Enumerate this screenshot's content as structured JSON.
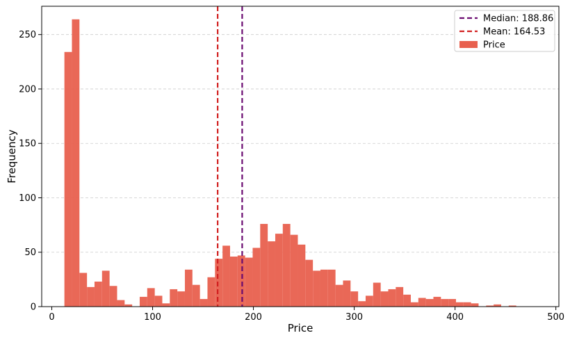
{
  "chart_data": {
    "type": "histogram",
    "title": "",
    "xlabel": "Price",
    "ylabel": "Frequency",
    "xlim": [
      -10,
      503
    ],
    "ylim": [
      0,
      276
    ],
    "xticks": [
      0,
      100,
      200,
      300,
      400,
      500
    ],
    "yticks": [
      0,
      50,
      100,
      150,
      200,
      250
    ],
    "grid": "horizontal, dashed",
    "legend_position": "top-right",
    "bar_color": "#e8604e",
    "bin_start": 12.5,
    "bin_width": 7.47,
    "series": [
      {
        "name": "Price",
        "values": [
          234,
          264,
          31,
          18,
          23,
          33,
          19,
          6,
          2,
          0,
          9,
          17,
          10,
          3,
          16,
          14,
          34,
          20,
          7,
          27,
          44,
          56,
          46,
          47,
          45,
          54,
          76,
          60,
          67,
          76,
          66,
          57,
          43,
          33,
          34,
          34,
          20,
          24,
          14,
          5,
          10,
          22,
          14,
          16,
          18,
          11,
          4,
          8,
          7,
          9,
          7,
          7,
          4,
          4,
          3,
          0,
          1,
          2,
          0,
          1,
          0
        ]
      }
    ],
    "reference_lines": [
      {
        "name": "Median: 188.86",
        "value": 188.86,
        "color": "#6a0a70",
        "style": "dashed"
      },
      {
        "name": "Mean: 164.53",
        "value": 164.53,
        "color": "#d11f1f",
        "style": "dashed"
      }
    ],
    "legend": [
      {
        "label": "Median: 188.86",
        "kind": "line",
        "color": "#6a0a70"
      },
      {
        "label": "Mean: 164.53",
        "kind": "line",
        "color": "#d11f1f"
      },
      {
        "label": "Price",
        "kind": "patch",
        "color": "#e8604e"
      }
    ]
  }
}
